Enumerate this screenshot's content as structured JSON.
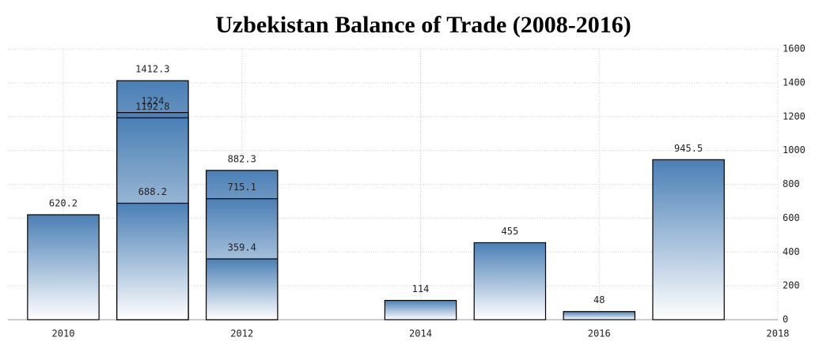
{
  "chart_data": {
    "type": "bar",
    "title": "Uzbekistan Balance of Trade (2008-2016)",
    "x": [
      2010,
      2011,
      2011,
      2011,
      2011,
      2012,
      2012,
      2012,
      2014,
      2015,
      2016,
      2017
    ],
    "values": [
      620.2,
      1412.3,
      1224,
      1192.8,
      688.2,
      882.3,
      715.1,
      359.4,
      114,
      455,
      48,
      945.5
    ],
    "color": "#4a7fb5",
    "xlim": [
      2009.38,
      2018
    ],
    "xticks": [
      2010,
      2012,
      2014,
      2016,
      2018
    ],
    "ylim": [
      0,
      1600
    ],
    "yticks": [
      0,
      200,
      400,
      600,
      800,
      1000,
      1200,
      1400,
      1600
    ],
    "grid": true
  }
}
